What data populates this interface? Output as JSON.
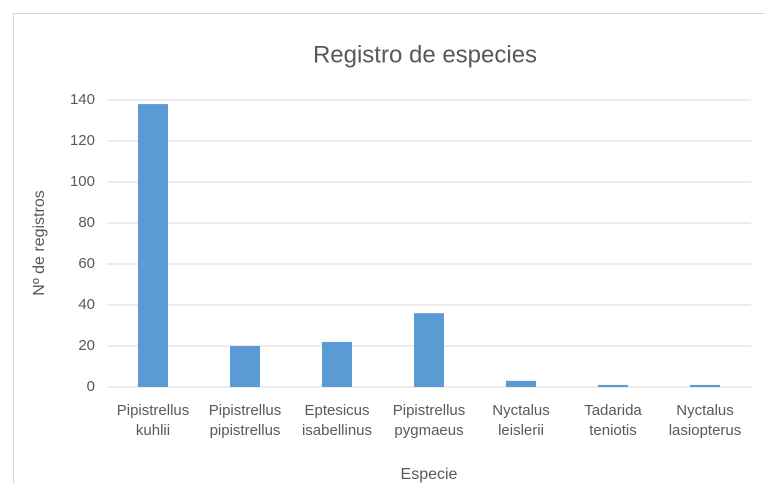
{
  "chart_data": {
    "type": "bar",
    "title": "Registro de especies",
    "x_label": "Especie",
    "y_label": "Nº de registros",
    "categories": [
      "Pipistrellus kuhlii",
      "Pipistrellus pipistrellus",
      "Eptesicus isabellinus",
      "Pipistrellus pygmaeus",
      "Nyctalus leislerii",
      "Tadarida teniotis",
      "Nyctalus lasiopterus"
    ],
    "values": [
      138,
      20,
      22,
      36,
      3,
      1,
      1
    ],
    "color": "#5b9bd5",
    "ylim": [
      0,
      140
    ],
    "yticks": [
      0,
      20,
      40,
      60,
      80,
      100,
      120,
      140
    ],
    "grid": true
  }
}
